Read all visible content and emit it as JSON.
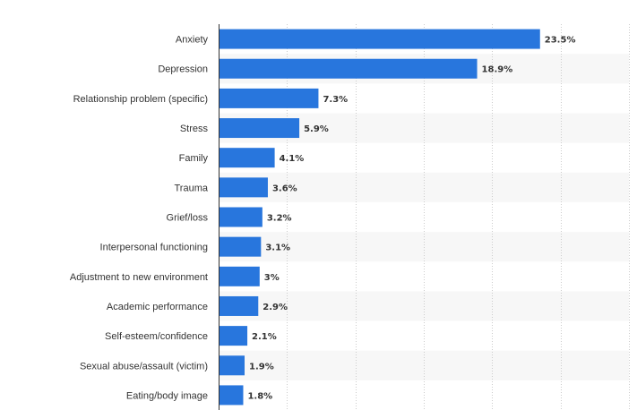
{
  "chart_data": {
    "type": "bar",
    "orientation": "horizontal",
    "categories": [
      "Anxiety",
      "Depression",
      "Relationship problem (specific)",
      "Stress",
      "Family",
      "Trauma",
      "Grief/loss",
      "Interpersonal functioning",
      "Adjustment to new environment",
      "Academic performance",
      "Self-esteem/confidence",
      "Sexual abuse/assault (victim)",
      "Eating/body image"
    ],
    "values": [
      23.5,
      18.9,
      7.3,
      5.9,
      4.1,
      3.6,
      3.2,
      3.1,
      3,
      2.9,
      2.1,
      1.9,
      1.8
    ],
    "value_labels": [
      "23.5%",
      "18.9%",
      "7.3%",
      "5.9%",
      "4.1%",
      "3.6%",
      "3.2%",
      "3.1%",
      "3%",
      "2.9%",
      "2.1%",
      "1.9%",
      "1.8%"
    ],
    "title": "",
    "xlabel": "",
    "ylabel": "",
    "xlim": [
      0,
      30
    ],
    "grid": true,
    "legend": "none",
    "bar_color": "#2876dd",
    "band_color": "#f7f7f7"
  }
}
